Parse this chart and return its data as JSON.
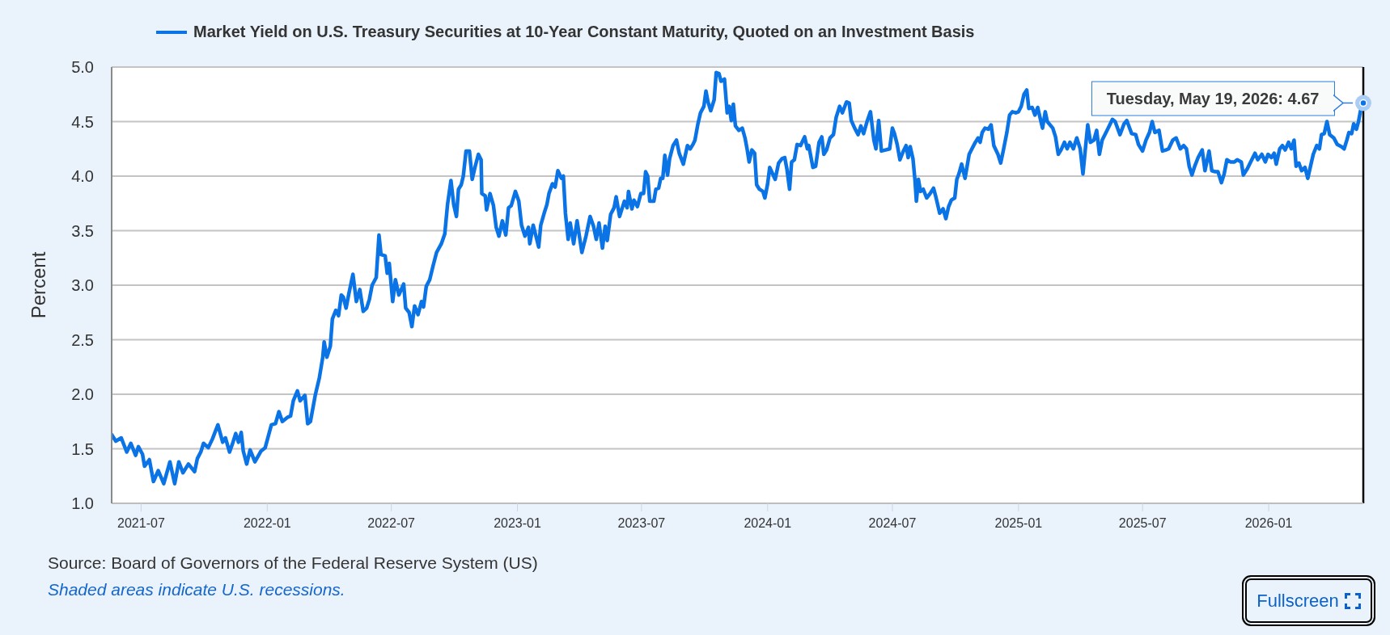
{
  "chart_data": {
    "type": "line",
    "ylabel": "Percent",
    "legend": "top left",
    "grid": "y",
    "xlim": [
      "2021-05-19",
      "2026-05-19"
    ],
    "xticks": [
      "2021-07",
      "2022-01",
      "2022-07",
      "2023-01",
      "2023-07",
      "2024-01",
      "2024-07",
      "2025-01",
      "2025-07",
      "2026-01"
    ],
    "ylim": [
      1,
      5
    ],
    "yticks": [
      {
        "value": 1,
        "label": "1.0"
      },
      {
        "value": 1.5,
        "label": "1.5"
      },
      {
        "value": 2,
        "label": "2.0"
      },
      {
        "value": 2.5,
        "label": "2.5"
      },
      {
        "value": 3,
        "label": "3.0"
      },
      {
        "value": 3.5,
        "label": "3.5"
      },
      {
        "value": 4,
        "label": "4.0"
      },
      {
        "value": 4.5,
        "label": "4.5"
      },
      {
        "value": 5,
        "label": "5.0"
      }
    ],
    "ref_lines": [
      {
        "axis": "x",
        "value": "2026-05-19",
        "color": "#000000"
      }
    ],
    "annotations": [
      "Source: Board of Governors of the Federal Reserve System (US)",
      "Shaded areas indicate U.S. recessions.",
      "Fullscreen",
      {
        "text": "Tuesday, May 19, 2026: 4.67",
        "x": "2026-05-19",
        "y": 4.67
      }
    ],
    "x": [
      "2021-05-19",
      "2021-05-25",
      "2021-06-02",
      "2021-06-10",
      "2021-06-16",
      "2021-06-23",
      "2021-06-27",
      "2021-07-03",
      "2021-07-06",
      "2021-07-13",
      "2021-07-19",
      "2021-07-26",
      "2021-08-03",
      "2021-08-12",
      "2021-08-19",
      "2021-08-25",
      "2021-08-31",
      "2021-09-08",
      "2021-09-17",
      "2021-09-21",
      "2021-09-26",
      "2021-09-30",
      "2021-10-07",
      "2021-10-13",
      "2021-10-21",
      "2021-10-28",
      "2021-11-01",
      "2021-11-07",
      "2021-11-12",
      "2021-11-16",
      "2021-11-20",
      "2021-11-24",
      "2021-11-27",
      "2021-12-02",
      "2021-12-07",
      "2021-12-14",
      "2021-12-23",
      "2021-12-29",
      "2022-01-07",
      "2022-01-13",
      "2022-01-18",
      "2022-01-23",
      "2022-01-31",
      "2022-02-04",
      "2022-02-08",
      "2022-02-14",
      "2022-02-18",
      "2022-02-25",
      "2022-03-01",
      "2022-03-05",
      "2022-03-12",
      "2022-03-18",
      "2022-03-23",
      "2022-03-25",
      "2022-03-29",
      "2022-04-03",
      "2022-04-06",
      "2022-04-11",
      "2022-04-15",
      "2022-04-19",
      "2022-04-22",
      "2022-04-26",
      "2022-04-30",
      "2022-05-06",
      "2022-05-11",
      "2022-05-16",
      "2022-05-21",
      "2022-05-26",
      "2022-05-30",
      "2022-06-03",
      "2022-06-09",
      "2022-06-13",
      "2022-06-16",
      "2022-06-22",
      "2022-06-25",
      "2022-06-28",
      "2022-07-03",
      "2022-07-07",
      "2022-07-12",
      "2022-07-19",
      "2022-07-22",
      "2022-07-27",
      "2022-07-31",
      "2022-08-04",
      "2022-08-09",
      "2022-08-14",
      "2022-08-17",
      "2022-08-21",
      "2022-08-26",
      "2022-08-31",
      "2022-09-05",
      "2022-09-12",
      "2022-09-17",
      "2022-09-21",
      "2022-09-26",
      "2022-09-30",
      "2022-10-04",
      "2022-10-07",
      "2022-10-11",
      "2022-10-14",
      "2022-10-18",
      "2022-10-23",
      "2022-10-27",
      "2022-10-31",
      "2022-11-05",
      "2022-11-09",
      "2022-11-10",
      "2022-11-15",
      "2022-11-17",
      "2022-11-22",
      "2022-11-27",
      "2022-12-01",
      "2022-12-05",
      "2022-12-10",
      "2022-12-15",
      "2022-12-19",
      "2022-12-23",
      "2022-12-29",
      "2023-01-03",
      "2023-01-07",
      "2023-01-12",
      "2023-01-17",
      "2023-01-19",
      "2023-01-24",
      "2023-01-28",
      "2023-02-01",
      "2023-02-04",
      "2023-02-09",
      "2023-02-13",
      "2023-02-16",
      "2023-02-21",
      "2023-02-25",
      "2023-03-01",
      "2023-03-06",
      "2023-03-09",
      "2023-03-12",
      "2023-03-16",
      "2023-03-19",
      "2023-03-24",
      "2023-03-29",
      "2023-04-05",
      "2023-04-11",
      "2023-04-17",
      "2023-04-22",
      "2023-04-26",
      "2023-04-30",
      "2023-05-05",
      "2023-05-09",
      "2023-05-12",
      "2023-05-17",
      "2023-05-22",
      "2023-05-25",
      "2023-05-30",
      "2023-06-06",
      "2023-06-10",
      "2023-06-12",
      "2023-06-17",
      "2023-06-20",
      "2023-06-25",
      "2023-06-30",
      "2023-07-04",
      "2023-07-07",
      "2023-07-10",
      "2023-07-13",
      "2023-07-19",
      "2023-07-22",
      "2023-07-26",
      "2023-07-29",
      "2023-08-01",
      "2023-08-04",
      "2023-08-08",
      "2023-08-11",
      "2023-08-16",
      "2023-08-21",
      "2023-08-25",
      "2023-08-31",
      "2023-09-06",
      "2023-09-10",
      "2023-09-14",
      "2023-09-17",
      "2023-09-21",
      "2023-09-25",
      "2023-09-30",
      "2023-10-03",
      "2023-10-06",
      "2023-10-10",
      "2023-10-15",
      "2023-10-18",
      "2023-10-22",
      "2023-10-25",
      "2023-10-30",
      "2023-11-03",
      "2023-11-06",
      "2023-11-09",
      "2023-11-12",
      "2023-11-15",
      "2023-11-20",
      "2023-11-25",
      "2023-11-29",
      "2023-12-02",
      "2023-12-05",
      "2023-12-09",
      "2023-12-13",
      "2023-12-16",
      "2023-12-20",
      "2023-12-25",
      "2023-12-28",
      "2024-01-01",
      "2024-01-04",
      "2024-01-12",
      "2024-01-17",
      "2024-01-22",
      "2024-01-26",
      "2024-01-29",
      "2024-02-02",
      "2024-02-05",
      "2024-02-09",
      "2024-02-13",
      "2024-02-18",
      "2024-02-21",
      "2024-02-24",
      "2024-02-28",
      "2024-03-01",
      "2024-03-07",
      "2024-03-11",
      "2024-03-16",
      "2024-03-20",
      "2024-03-23",
      "2024-03-27",
      "2024-04-01",
      "2024-04-06",
      "2024-04-10",
      "2024-04-15",
      "2024-04-19",
      "2024-04-25",
      "2024-04-29",
      "2024-05-02",
      "2024-05-07",
      "2024-05-12",
      "2024-05-16",
      "2024-05-20",
      "2024-05-25",
      "2024-05-30",
      "2024-06-04",
      "2024-06-07",
      "2024-06-11",
      "2024-06-15",
      "2024-06-21",
      "2024-06-27",
      "2024-07-01",
      "2024-07-04",
      "2024-07-08",
      "2024-07-12",
      "2024-07-17",
      "2024-07-21",
      "2024-07-24",
      "2024-07-27",
      "2024-07-31",
      "2024-08-03",
      "2024-08-05",
      "2024-08-08",
      "2024-08-11",
      "2024-08-15",
      "2024-08-20",
      "2024-08-25",
      "2024-08-30",
      "2024-09-02",
      "2024-09-05",
      "2024-09-08",
      "2024-09-13",
      "2024-09-17",
      "2024-09-21",
      "2024-09-25",
      "2024-09-30",
      "2024-10-03",
      "2024-10-06",
      "2024-10-10",
      "2024-10-15",
      "2024-10-21",
      "2024-10-25",
      "2024-10-30",
      "2024-11-03",
      "2024-11-06",
      "2024-11-09",
      "2024-11-13",
      "2024-11-18",
      "2024-11-22",
      "2024-11-26",
      "2024-12-02",
      "2024-12-06",
      "2024-12-10",
      "2024-12-15",
      "2024-12-19",
      "2024-12-23",
      "2024-12-28",
      "2025-01-01",
      "2025-01-05",
      "2025-01-09",
      "2025-01-13",
      "2025-01-16",
      "2025-01-21",
      "2025-01-25",
      "2025-01-29",
      "2025-02-02",
      "2025-02-05",
      "2025-02-09",
      "2025-02-12",
      "2025-02-20",
      "2025-02-24",
      "2025-02-28",
      "2025-03-04",
      "2025-03-09",
      "2025-03-13",
      "2025-03-17",
      "2025-03-22",
      "2025-03-27",
      "2025-04-01",
      "2025-04-05",
      "2025-04-09",
      "2025-04-12",
      "2025-04-16",
      "2025-04-21",
      "2025-04-25",
      "2025-04-29",
      "2025-05-03",
      "2025-05-11",
      "2025-05-18",
      "2025-05-22",
      "2025-05-29",
      "2025-06-04",
      "2025-06-08",
      "2025-06-15",
      "2025-06-21",
      "2025-06-25",
      "2025-07-01",
      "2025-07-06",
      "2025-07-11",
      "2025-07-15",
      "2025-07-19",
      "2025-07-25",
      "2025-07-30",
      "2025-08-04",
      "2025-08-08",
      "2025-08-14",
      "2025-08-19",
      "2025-08-25",
      "2025-08-30",
      "2025-09-03",
      "2025-09-07",
      "2025-09-11",
      "2025-09-15",
      "2025-09-20",
      "2025-09-26",
      "2025-09-30",
      "2025-10-06",
      "2025-10-10",
      "2025-10-15",
      "2025-10-19",
      "2025-10-24",
      "2025-10-28",
      "2025-11-01",
      "2025-11-06",
      "2025-11-12",
      "2025-11-16",
      "2025-11-22",
      "2025-11-25",
      "2025-12-01",
      "2025-12-08",
      "2025-12-12",
      "2025-12-16",
      "2025-12-22",
      "2025-12-27",
      "2025-12-31",
      "2026-01-05",
      "2026-01-09",
      "2026-01-12",
      "2026-01-17",
      "2026-01-21",
      "2026-01-25",
      "2026-01-30",
      "2026-02-03",
      "2026-02-07",
      "2026-02-10",
      "2026-02-14",
      "2026-02-18",
      "2026-02-23",
      "2026-02-27",
      "2026-03-03",
      "2026-03-07",
      "2026-03-12",
      "2026-03-16",
      "2026-03-19",
      "2026-03-23",
      "2026-03-27",
      "2026-03-31",
      "2026-04-06",
      "2026-04-11",
      "2026-04-17",
      "2026-04-21",
      "2026-04-25",
      "2026-04-28",
      "2026-05-02",
      "2026-05-05",
      "2026-05-09",
      "2026-05-12",
      "2026-05-15",
      "2026-05-19"
    ],
    "series": [
      {
        "name": "Market Yield on U.S. Treasury Securities at 10-Year Constant Maturity, Quoted on an Investment Basis",
        "color": "#0a73e6",
        "values": [
          1.63,
          1.57,
          1.6,
          1.47,
          1.55,
          1.44,
          1.52,
          1.45,
          1.34,
          1.4,
          1.2,
          1.3,
          1.18,
          1.38,
          1.18,
          1.38,
          1.28,
          1.36,
          1.29,
          1.41,
          1.47,
          1.55,
          1.51,
          1.59,
          1.72,
          1.56,
          1.6,
          1.47,
          1.56,
          1.64,
          1.56,
          1.65,
          1.48,
          1.36,
          1.49,
          1.38,
          1.48,
          1.51,
          1.72,
          1.73,
          1.84,
          1.75,
          1.79,
          1.8,
          1.94,
          2.03,
          1.94,
          1.99,
          1.73,
          1.75,
          1.99,
          2.15,
          2.34,
          2.48,
          2.34,
          2.44,
          2.69,
          2.77,
          2.72,
          2.91,
          2.89,
          2.79,
          2.92,
          3.1,
          2.85,
          2.96,
          2.76,
          2.79,
          2.87,
          3.0,
          3.07,
          3.46,
          3.28,
          3.27,
          3.11,
          3.2,
          2.85,
          3.05,
          2.91,
          3.01,
          2.79,
          2.75,
          2.62,
          2.81,
          2.73,
          2.85,
          2.8,
          2.99,
          3.05,
          3.18,
          3.3,
          3.38,
          3.47,
          3.74,
          3.96,
          3.74,
          3.63,
          3.88,
          3.92,
          4.0,
          4.23,
          4.23,
          3.97,
          4.08,
          4.2,
          4.15,
          3.84,
          3.82,
          3.69,
          3.84,
          3.73,
          3.53,
          3.45,
          3.59,
          3.46,
          3.71,
          3.73,
          3.86,
          3.77,
          3.55,
          3.45,
          3.53,
          3.38,
          3.55,
          3.45,
          3.35,
          3.55,
          3.66,
          3.74,
          3.84,
          3.93,
          3.9,
          4.05,
          3.98,
          4.0,
          3.66,
          3.42,
          3.57,
          3.38,
          3.59,
          3.3,
          3.45,
          3.63,
          3.54,
          3.42,
          3.57,
          3.34,
          3.54,
          3.41,
          3.65,
          3.71,
          3.81,
          3.63,
          3.77,
          3.71,
          3.86,
          3.7,
          3.78,
          3.72,
          3.84,
          3.84,
          4.04,
          4.0,
          3.77,
          3.77,
          3.88,
          3.89,
          3.98,
          3.98,
          4.19,
          4.01,
          4.16,
          4.28,
          4.33,
          4.21,
          4.11,
          4.28,
          4.25,
          4.29,
          4.33,
          4.47,
          4.58,
          4.64,
          4.78,
          4.68,
          4.6,
          4.7,
          4.95,
          4.94,
          4.87,
          4.89,
          4.58,
          4.64,
          4.51,
          4.66,
          4.46,
          4.42,
          4.44,
          4.35,
          4.25,
          4.13,
          4.24,
          4.21,
          3.92,
          3.88,
          3.86,
          3.8,
          3.93,
          4.08,
          3.97,
          4.12,
          4.16,
          4.17,
          4.07,
          3.88,
          4.13,
          4.15,
          4.29,
          4.28,
          4.32,
          4.36,
          4.25,
          4.28,
          4.08,
          4.09,
          4.31,
          4.36,
          4.2,
          4.24,
          4.35,
          4.38,
          4.54,
          4.64,
          4.58,
          4.68,
          4.67,
          4.51,
          4.44,
          4.38,
          4.46,
          4.39,
          4.5,
          4.59,
          4.33,
          4.25,
          4.51,
          4.23,
          4.24,
          4.25,
          4.44,
          4.39,
          4.29,
          4.15,
          4.23,
          4.28,
          4.17,
          4.27,
          4.16,
          3.96,
          3.77,
          3.97,
          3.86,
          3.88,
          3.8,
          3.84,
          3.89,
          3.82,
          3.74,
          3.66,
          3.7,
          3.61,
          3.72,
          3.78,
          3.8,
          3.97,
          4.02,
          4.11,
          3.98,
          4.2,
          4.25,
          4.31,
          4.35,
          4.31,
          4.4,
          4.44,
          4.43,
          4.47,
          4.28,
          4.2,
          4.12,
          4.24,
          4.4,
          4.56,
          4.59,
          4.58,
          4.59,
          4.64,
          4.75,
          4.79,
          4.62,
          4.63,
          4.56,
          4.63,
          4.52,
          4.44,
          4.59,
          4.5,
          4.44,
          4.36,
          4.2,
          4.24,
          4.31,
          4.25,
          4.31,
          4.25,
          4.35,
          4.25,
          4.02,
          4.28,
          4.47,
          4.31,
          4.33,
          4.42,
          4.2,
          4.33,
          4.43,
          4.52,
          4.5,
          4.38,
          4.48,
          4.51,
          4.39,
          4.38,
          4.29,
          4.23,
          4.33,
          4.4,
          4.5,
          4.4,
          4.42,
          4.23,
          4.24,
          4.25,
          4.33,
          4.35,
          4.25,
          4.28,
          4.25,
          4.09,
          4.01,
          4.09,
          4.17,
          4.24,
          4.05,
          4.23,
          4.05,
          4.04,
          4.04,
          3.94,
          4.02,
          4.15,
          4.13,
          4.13,
          4.15,
          4.13,
          4.01,
          4.07,
          4.16,
          4.21,
          4.15,
          4.2,
          4.13,
          4.2,
          4.17,
          4.21,
          4.11,
          4.25,
          4.28,
          4.24,
          4.31,
          4.25,
          4.33,
          4.09,
          4.12,
          4.05,
          4.08,
          3.98,
          4.09,
          4.2,
          4.28,
          4.25,
          4.38,
          4.39,
          4.5,
          4.38,
          4.35,
          4.29,
          4.27,
          4.25,
          4.33,
          4.4,
          4.39,
          4.48,
          4.43,
          4.5,
          4.6,
          4.67
        ]
      }
    ]
  }
}
